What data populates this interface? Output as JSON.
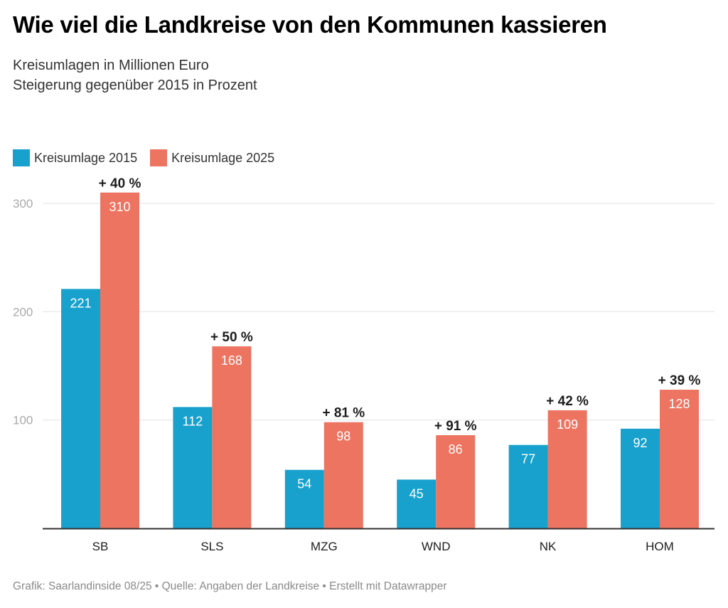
{
  "title": "Wie viel die Landkreise von den Kommunen kassieren",
  "subtitle": [
    "Kreisumlagen in Millionen Euro",
    "Steigerung gegenüber 2015 in Prozent"
  ],
  "footer": "Grafik: Saarlandinside 08/25 • Quelle: Angaben der Landkreise • Erstellt mit Datawrapper",
  "colors": {
    "s2015": "#18a1cd",
    "s2025": "#ed7460",
    "grid": "#e2e2e2",
    "axis": "#333333",
    "tick": "#aaaaaa"
  },
  "chart_data": {
    "type": "bar",
    "title": "Wie viel die Landkreise von den Kommunen kassieren",
    "subtitle": "Kreisumlagen in Millionen Euro; Steigerung gegenüber 2015 in Prozent",
    "xlabel": "",
    "ylabel": "",
    "ylim": [
      0,
      320
    ],
    "yticks": [
      100,
      200,
      300
    ],
    "grid": true,
    "legend_position": "top-left",
    "categories": [
      "SB",
      "SLS",
      "MZG",
      "WND",
      "NK",
      "HOM"
    ],
    "series": [
      {
        "name": "Kreisumlage 2015",
        "values": [
          221,
          112,
          54,
          45,
          77,
          92
        ]
      },
      {
        "name": "Kreisumlage 2025",
        "values": [
          310,
          168,
          98,
          86,
          109,
          128
        ]
      }
    ],
    "annotations": [
      "+ 40 %",
      "+ 50 %",
      "+ 81 %",
      "+ 91 %",
      "+ 42 %",
      "+ 39 %"
    ]
  }
}
